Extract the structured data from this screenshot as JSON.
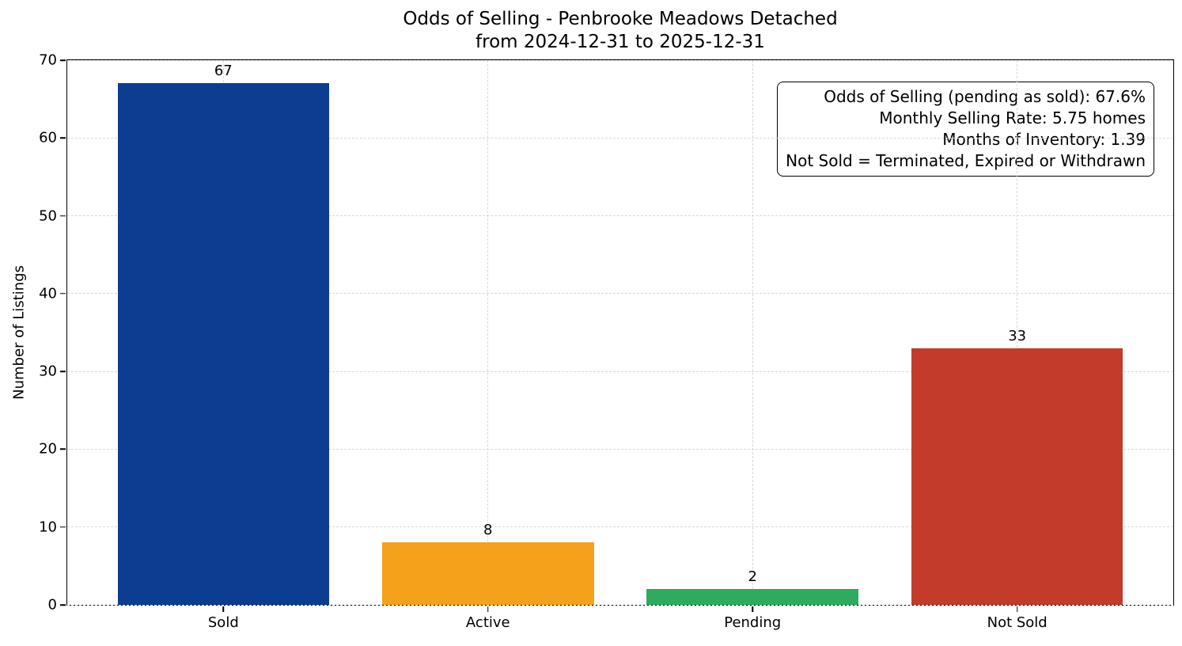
{
  "chart_data": {
    "type": "bar",
    "title_line1": "Odds of Selling - Penbrooke Meadows Detached",
    "title_line2": "from 2024-12-31 to 2025-12-31",
    "categories": [
      "Sold",
      "Active",
      "Pending",
      "Not Sold"
    ],
    "values": [
      67,
      8,
      2,
      33
    ],
    "bar_colors": [
      "#0d3d91",
      "#f5a11b",
      "#2fab5e",
      "#c23b2b"
    ],
    "ylabel": "Number of Listings",
    "xlabel": "",
    "ylim": [
      0,
      70
    ],
    "yticks": [
      0,
      10,
      20,
      30,
      40,
      50,
      60,
      70
    ],
    "xlim": [
      -0.59,
      3.59
    ],
    "bar_width": 0.8,
    "grid": {
      "horizontal": true,
      "vertical": true,
      "style": "dashed",
      "color": "#d8d8d8"
    },
    "legend": "none",
    "annotation": {
      "position": "top-right",
      "align": "right",
      "lines": [
        "Odds of Selling (pending as sold): 67.6%",
        "Monthly Selling Rate: 5.75 homes",
        "Months of Inventory: 1.39",
        "Not Sold = Terminated, Expired or Withdrawn"
      ]
    }
  }
}
